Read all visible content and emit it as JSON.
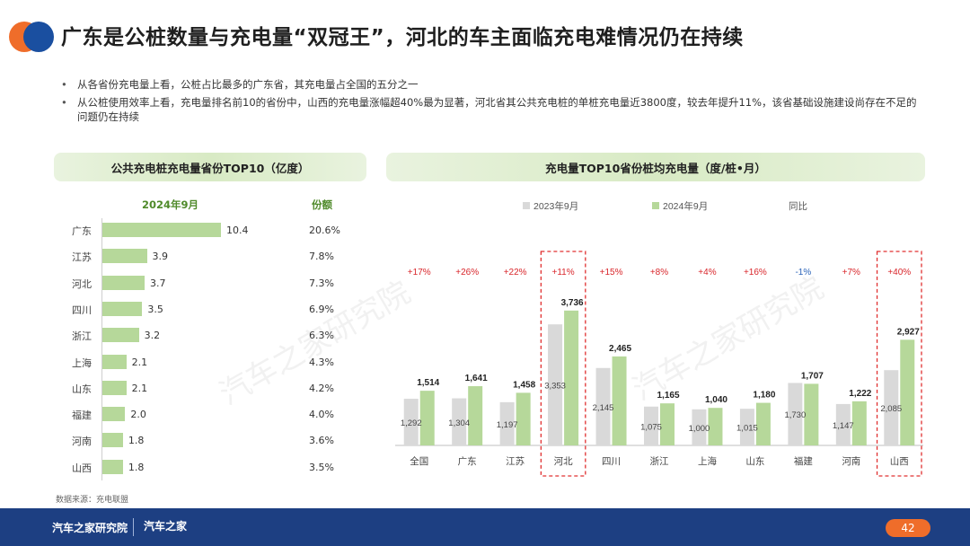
{
  "title": "广东是公桩数量与充电量“双冠王”，河北的车主面临充电难情况仍在持续",
  "bullets": [
    "从各省份充电量上看，公桩占比最多的广东省，其充电量占全国的五分之一",
    "从公桩使用效率上看，充电量排名前10的省份中，山西的充电量涨幅超40%最为显著，河北省其公共充电桩的单桩充电量近3800度，较去年提升11%，该省基础设施建设尚存在不足的问题仍在持续"
  ],
  "left_panel": {
    "banner": "公共充电桩充电量省份TOP10（亿度）",
    "period_header": "2024年9月",
    "share_header": "份额"
  },
  "right_panel": {
    "banner": "充电量TOP10省份桩均充电量（度/桩•月）"
  },
  "source": "数据来源：充电联盟",
  "watermark": "汽车之家研究院",
  "footer": {
    "brand": "汽车之家研究院",
    "brand2": "汽车之家",
    "page": "42"
  },
  "colors": {
    "bar_2023": "#d9d9d9",
    "bar_2024": "#b6d89a",
    "yoy_positive": "#d9262b",
    "yoy_negative": "#2a63b8",
    "highlight_box": "#e03030",
    "footer_bg": "#1d3f82",
    "accent_orange": "#ef6d2a",
    "accent_blue": "#1a4fa0"
  },
  "chart_data": [
    {
      "type": "bar",
      "title": "公共充电桩充电量省份TOP10（亿度）",
      "orientation": "horizontal",
      "series_name": "2024年9月",
      "categories": [
        "广东",
        "江苏",
        "河北",
        "四川",
        "浙江",
        "上海",
        "山东",
        "福建",
        "河南",
        "山西"
      ],
      "values": [
        10.4,
        3.9,
        3.7,
        3.5,
        3.2,
        2.1,
        2.1,
        2.0,
        1.8,
        1.8
      ],
      "value_labels": [
        "10.4",
        "3.9",
        "3.7",
        "3.5",
        "3.2",
        "2.1",
        "2.1",
        "2.0",
        "1.8",
        "1.8"
      ],
      "share_header": "份额",
      "shares": [
        "20.6%",
        "7.8%",
        "7.3%",
        "6.9%",
        "6.3%",
        "4.3%",
        "4.2%",
        "4.0%",
        "3.6%",
        "3.5%"
      ]
    },
    {
      "type": "bar",
      "title": "充电量TOP10省份桩均充电量（度/桩•月）",
      "categories": [
        "全国",
        "广东",
        "江苏",
        "河北",
        "四川",
        "浙江",
        "上海",
        "山东",
        "福建",
        "河南",
        "山西"
      ],
      "series": [
        {
          "name": "2023年9月",
          "values": [
            1292,
            1304,
            1197,
            3353,
            2145,
            1075,
            1000,
            1015,
            1730,
            1147,
            2085
          ],
          "labels": [
            "1,292",
            "1,304",
            "1,197",
            "3,353",
            "2,145",
            "1,075",
            "1,000",
            "1,015",
            "1,730",
            "1,147",
            "2,085"
          ]
        },
        {
          "name": "2024年9月",
          "values": [
            1514,
            1641,
            1458,
            3736,
            2465,
            1165,
            1040,
            1180,
            1707,
            1222,
            2927
          ],
          "labels": [
            "1,514",
            "1,641",
            "1,458",
            "3,736",
            "2,465",
            "1,165",
            "1,040",
            "1,180",
            "1,707",
            "1,222",
            "2,927"
          ]
        }
      ],
      "yoy_name": "同比",
      "yoy": [
        "+17%",
        "+26%",
        "+22%",
        "+11%",
        "+15%",
        "+8%",
        "+4%",
        "+16%",
        "-1%",
        "+7%",
        "+40%"
      ],
      "highlighted": [
        "河北",
        "山西"
      ],
      "ylim": [
        0,
        4000
      ],
      "legend_position": "top"
    }
  ]
}
